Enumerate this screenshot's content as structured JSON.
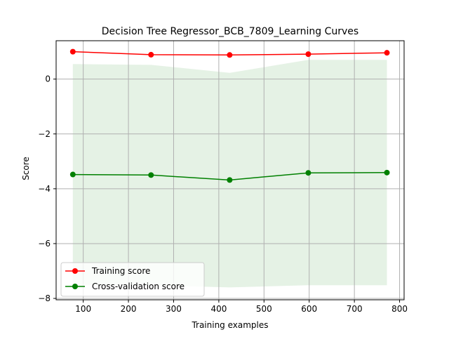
{
  "chart_data": {
    "type": "line",
    "title": "Decision Tree Regressor_BCB_7809_Learning Curves",
    "xlabel": "Training examples",
    "ylabel": "Score",
    "xlim": [
      40,
      810
    ],
    "ylim": [
      -8.05,
      1.4
    ],
    "xticks": [
      100,
      200,
      300,
      400,
      500,
      600,
      700,
      800
    ],
    "yticks": [
      0,
      -2,
      -4,
      -6,
      -8
    ],
    "grid": true,
    "legend_position": "lower-left",
    "x": [
      77,
      250,
      424,
      598,
      772
    ],
    "series": [
      {
        "name": "Training score",
        "color": "#ff0000",
        "values": [
          1.0,
          0.89,
          0.88,
          0.91,
          0.96
        ],
        "band_upper": [
          1.0,
          0.89,
          0.88,
          0.91,
          0.96
        ],
        "band_lower": [
          1.0,
          0.89,
          0.88,
          0.91,
          0.96
        ],
        "band_color": "#ff0000"
      },
      {
        "name": "Cross-validation score",
        "color": "#008000",
        "values": [
          -3.48,
          -3.5,
          -3.68,
          -3.42,
          -3.41
        ],
        "band_upper": [
          0.55,
          0.52,
          0.23,
          0.7,
          0.7
        ],
        "band_lower": [
          -7.52,
          -7.52,
          -7.6,
          -7.52,
          -7.52
        ],
        "band_color": "#008000"
      }
    ]
  }
}
